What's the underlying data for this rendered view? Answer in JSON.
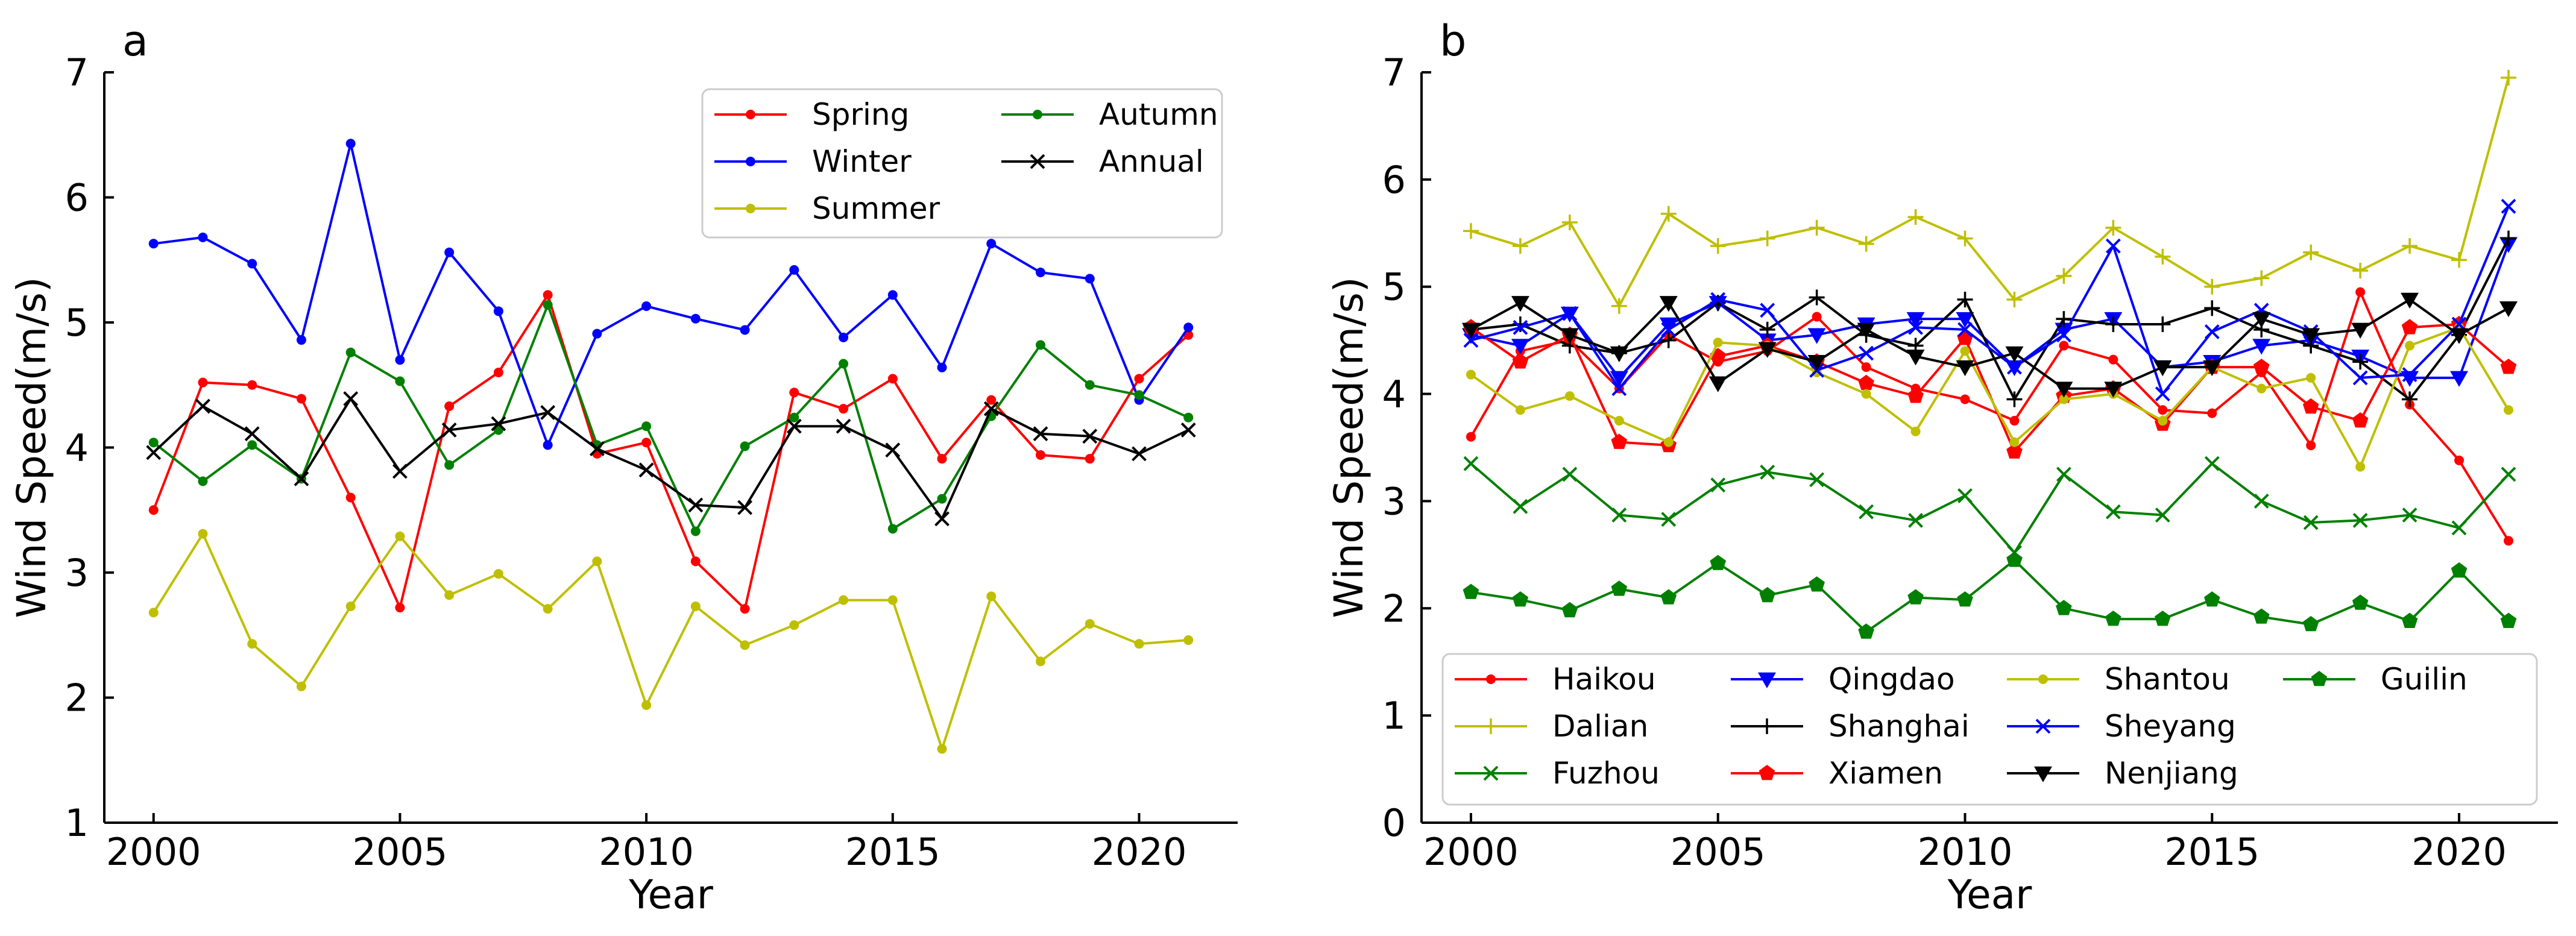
{
  "chart_data": [
    {
      "type": "line",
      "panel_label": "a",
      "xlabel": "Year",
      "ylabel": "Wind Speed(m/s)",
      "xlim": [
        1999,
        2022
      ],
      "ylim": [
        1,
        7
      ],
      "xticks": [
        2000,
        2005,
        2010,
        2015,
        2020
      ],
      "yticks": [
        1,
        2,
        3,
        4,
        5,
        6,
        7
      ],
      "legend_position": "top-right",
      "legend_columns": 2,
      "x": [
        2000,
        2001,
        2002,
        2003,
        2004,
        2005,
        2006,
        2007,
        2008,
        2009,
        2010,
        2011,
        2012,
        2013,
        2014,
        2015,
        2016,
        2017,
        2018,
        2019,
        2020,
        2021
      ],
      "series": [
        {
          "name": "Spring",
          "color": "#ff0000",
          "marker": "dot",
          "values": [
            3.5,
            4.52,
            4.5,
            4.39,
            3.6,
            2.72,
            4.33,
            4.6,
            5.22,
            3.95,
            4.04,
            3.09,
            2.71,
            4.44,
            4.31,
            4.55,
            3.91,
            4.38,
            3.94,
            3.91,
            4.55,
            4.9
          ]
        },
        {
          "name": "Winter",
          "color": "#0000ff",
          "marker": "dot",
          "values": [
            5.63,
            5.68,
            5.47,
            4.86,
            6.43,
            4.7,
            5.56,
            5.09,
            4.02,
            4.91,
            5.13,
            5.03,
            4.94,
            5.42,
            4.88,
            5.22,
            4.64,
            5.63,
            5.4,
            5.35,
            4.38,
            4.96
          ]
        },
        {
          "name": "Summer",
          "color": "#bfbf00",
          "marker": "dot",
          "values": [
            2.68,
            3.31,
            2.43,
            2.09,
            2.73,
            3.29,
            2.82,
            2.99,
            2.71,
            3.09,
            1.94,
            2.73,
            2.42,
            2.58,
            2.78,
            2.78,
            1.59,
            2.81,
            2.29,
            2.59,
            2.43,
            2.46
          ]
        },
        {
          "name": "Autumn",
          "color": "#008000",
          "marker": "dot",
          "values": [
            4.04,
            3.73,
            4.02,
            3.75,
            4.76,
            4.53,
            3.86,
            4.14,
            5.14,
            4.02,
            4.17,
            3.33,
            4.01,
            4.24,
            4.67,
            3.35,
            3.59,
            4.25,
            4.82,
            4.5,
            4.42,
            4.24
          ]
        },
        {
          "name": "Annual",
          "color": "#000000",
          "marker": "x",
          "values": [
            3.96,
            4.33,
            4.11,
            3.75,
            4.39,
            3.81,
            4.14,
            4.19,
            4.28,
            3.99,
            3.82,
            3.54,
            3.52,
            4.17,
            4.17,
            3.98,
            3.43,
            4.31,
            4.11,
            4.09,
            3.95,
            4.14
          ]
        }
      ]
    },
    {
      "type": "line",
      "panel_label": "b",
      "xlabel": "Year",
      "ylabel": "Wind Speed(m/s)",
      "xlim": [
        1999,
        2022
      ],
      "ylim": [
        0,
        7
      ],
      "xticks": [
        2000,
        2005,
        2010,
        2015,
        2020
      ],
      "yticks": [
        0,
        1,
        2,
        3,
        4,
        5,
        6,
        7
      ],
      "legend_position": "bottom",
      "legend_columns": 4,
      "x": [
        2000,
        2001,
        2002,
        2003,
        2004,
        2005,
        2006,
        2007,
        2008,
        2009,
        2010,
        2011,
        2012,
        2013,
        2014,
        2015,
        2016,
        2017,
        2018,
        2019,
        2020,
        2021
      ],
      "series": [
        {
          "name": "Haikou",
          "color": "#ff0000",
          "marker": "dot",
          "values": [
            3.6,
            4.4,
            4.5,
            4.05,
            4.55,
            4.3,
            4.4,
            4.72,
            4.25,
            4.05,
            3.95,
            3.75,
            4.45,
            4.32,
            3.85,
            3.82,
            4.2,
            3.52,
            4.95,
            3.9,
            3.38,
            2.63
          ]
        },
        {
          "name": "Dalian",
          "color": "#bfbf00",
          "marker": "plus",
          "values": [
            5.52,
            5.38,
            5.6,
            4.82,
            5.68,
            5.38,
            5.45,
            5.55,
            5.4,
            5.65,
            5.45,
            4.88,
            5.1,
            5.55,
            5.28,
            5.0,
            5.08,
            5.32,
            5.15,
            5.38,
            5.25,
            6.95
          ]
        },
        {
          "name": "Fuzhou",
          "color": "#008000",
          "marker": "x",
          "values": [
            3.35,
            2.95,
            3.25,
            2.87,
            2.83,
            3.15,
            3.27,
            3.2,
            2.9,
            2.82,
            3.05,
            2.52,
            3.25,
            2.9,
            2.87,
            3.35,
            3.0,
            2.8,
            2.82,
            2.87,
            2.75,
            3.25
          ]
        },
        {
          "name": "Qingdao",
          "color": "#0000ff",
          "marker": "tri-down",
          "values": [
            4.55,
            4.45,
            4.75,
            4.15,
            4.65,
            4.85,
            4.5,
            4.55,
            4.65,
            4.7,
            4.7,
            4.25,
            4.6,
            4.7,
            4.25,
            4.3,
            4.45,
            4.5,
            4.35,
            4.15,
            4.15,
            5.4
          ]
        },
        {
          "name": "Shanghai",
          "color": "#000000",
          "marker": "plus",
          "values": [
            4.6,
            4.65,
            4.45,
            4.38,
            4.5,
            4.85,
            4.6,
            4.9,
            4.55,
            4.45,
            4.88,
            3.95,
            4.7,
            4.65,
            4.65,
            4.8,
            4.6,
            4.45,
            4.3,
            3.95,
            4.55,
            5.45
          ]
        },
        {
          "name": "Xiamen",
          "color": "#ff0000",
          "marker": "pentagon",
          "values": [
            4.62,
            4.3,
            4.55,
            3.55,
            3.52,
            4.35,
            4.45,
            4.3,
            4.1,
            3.98,
            4.52,
            3.46,
            3.98,
            4.05,
            3.72,
            4.25,
            4.25,
            3.88,
            3.75,
            4.62,
            4.65,
            4.25
          ]
        },
        {
          "name": "Shantou",
          "color": "#bfbf00",
          "marker": "dot",
          "values": [
            4.18,
            3.85,
            3.98,
            3.75,
            3.55,
            4.48,
            4.45,
            4.2,
            4.0,
            3.65,
            4.4,
            3.55,
            3.95,
            4.0,
            3.75,
            4.25,
            4.05,
            4.15,
            3.32,
            4.45,
            4.62,
            3.85
          ]
        },
        {
          "name": "Sheyang",
          "color": "#0000ff",
          "marker": "x",
          "values": [
            4.5,
            4.62,
            4.75,
            4.05,
            4.6,
            4.88,
            4.78,
            4.22,
            4.38,
            4.62,
            4.6,
            4.25,
            4.55,
            5.38,
            4.0,
            4.58,
            4.78,
            4.58,
            4.15,
            4.18,
            4.65,
            5.75
          ]
        },
        {
          "name": "Nenjiang",
          "color": "#000000",
          "marker": "tri-down",
          "values": [
            4.6,
            4.85,
            4.55,
            4.38,
            4.85,
            4.1,
            4.42,
            4.3,
            4.6,
            4.35,
            4.25,
            4.38,
            4.05,
            4.05,
            4.25,
            4.25,
            4.7,
            4.55,
            4.6,
            4.88,
            4.55,
            4.8
          ]
        },
        {
          "name": "Guilin",
          "color": "#008000",
          "marker": "pentagon",
          "values": [
            2.15,
            2.08,
            1.98,
            2.18,
            2.1,
            2.42,
            2.12,
            2.22,
            1.78,
            2.1,
            2.08,
            2.45,
            2.0,
            1.9,
            1.9,
            2.08,
            1.92,
            1.85,
            2.05,
            1.88,
            2.35,
            1.88
          ]
        }
      ]
    }
  ]
}
